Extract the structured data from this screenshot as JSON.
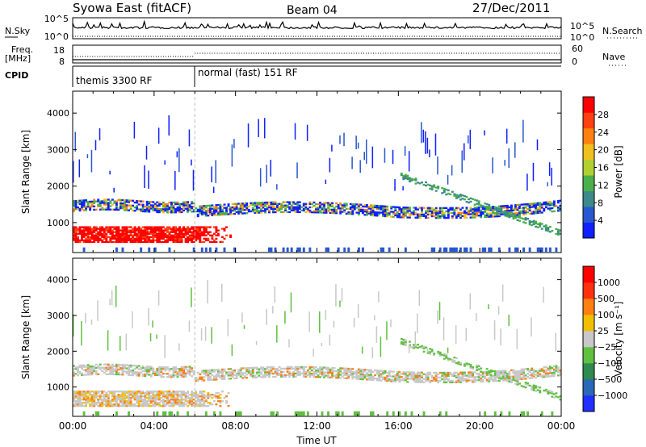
{
  "header": {
    "station": "Syowa East (fitACF)",
    "beam": "Beam 04",
    "date": "27/Dec/2011"
  },
  "left_labels": {
    "nsky": "N.Sky",
    "freq_line1": "Freq.",
    "freq_line2": "[MHz]",
    "cpid": "CPID"
  },
  "right_labels": {
    "nsearch": "N.Search",
    "nave": "Nave"
  },
  "chart_data": [
    {
      "type": "line",
      "name": "noise",
      "series": [
        {
          "name": "N.Sky"
        },
        {
          "name": "N.Search"
        }
      ],
      "left_ticks": [
        "10^5",
        "10^0"
      ],
      "right_ticks": [
        "10^5",
        "10^0"
      ]
    },
    {
      "type": "line",
      "name": "frequency",
      "series": [
        {
          "name": "Freq. [MHz]"
        },
        {
          "name": "Nave"
        }
      ],
      "left_ticks": [
        "18",
        "8"
      ],
      "right_ticks": [
        "60",
        "0"
      ]
    },
    {
      "type": "table",
      "name": "cpid",
      "segments": [
        {
          "label": "themis 3300 RF",
          "start_hour": 0,
          "end_hour": 6
        },
        {
          "label": "normal (fast) 151 RF",
          "start_hour": 6,
          "end_hour": 24
        }
      ]
    },
    {
      "type": "heatmap",
      "name": "power",
      "ylabel": "Slant Range [km]",
      "yticks": [
        1000,
        2000,
        3000,
        4000
      ],
      "ylim": [
        180,
        4600
      ],
      "colorbar": {
        "label": "Power [dB]",
        "ticks": [
          "4",
          "8",
          "12",
          "16",
          "20",
          "24",
          "28"
        ],
        "colors": [
          "#1020ff",
          "#2858d0",
          "#3c8a8a",
          "#4ab04a",
          "#b0d030",
          "#f0c020",
          "#ff8010",
          "#ff4010",
          "#ff0000"
        ]
      }
    },
    {
      "type": "heatmap",
      "name": "velocity",
      "ylabel": "Slant Range [km]",
      "yticks": [
        1000,
        2000,
        3000,
        4000
      ],
      "ylim": [
        180,
        4600
      ],
      "xlabel": "Time UT",
      "xticks": [
        "00:00",
        "04:00",
        "08:00",
        "12:00",
        "16:00",
        "20:00",
        "00:00"
      ],
      "xlim": [
        0,
        24
      ],
      "colorbar": {
        "label": "Velocity [m s⁻¹]",
        "ticks": [
          "1000",
          "500",
          "100",
          "25",
          "−25",
          "−100",
          "−500",
          "−1000"
        ],
        "colors": [
          "#2030ff",
          "#2a68b8",
          "#2e8a4e",
          "#60c040",
          "#c8c8c8",
          "#f0c000",
          "#ff8010",
          "#ff3010",
          "#ff0000"
        ]
      }
    }
  ]
}
